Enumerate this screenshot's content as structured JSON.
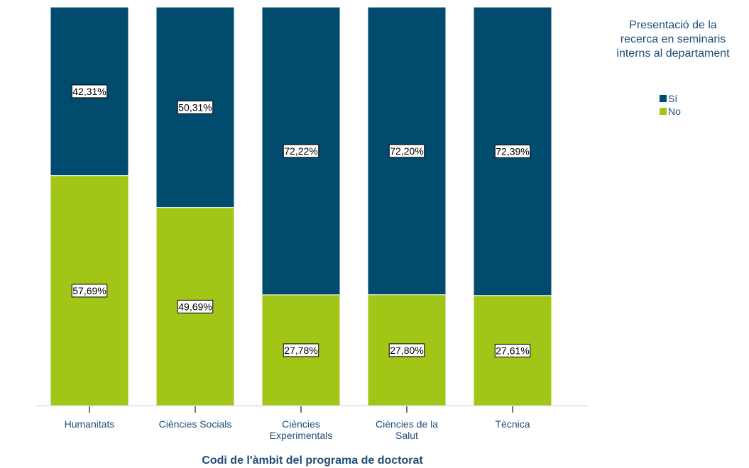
{
  "chart_data": {
    "type": "bar",
    "stacked": true,
    "percent": true,
    "categories": [
      [
        "Humanitats"
      ],
      [
        "Ciències Socials"
      ],
      [
        "Ciències",
        "Experimentals"
      ],
      [
        "Ciències de la",
        "Salut"
      ],
      [
        "Tècnica"
      ]
    ],
    "series": [
      {
        "name": "Sí",
        "color": "#004b6e",
        "values": [
          42.31,
          50.31,
          72.22,
          72.2,
          72.39
        ],
        "labels": [
          "42,31%",
          "50,31%",
          "72,22%",
          "72,20%",
          "72,39%"
        ]
      },
      {
        "name": "No",
        "color": "#a2c617",
        "values": [
          57.69,
          49.69,
          27.78,
          27.8,
          27.61
        ],
        "labels": [
          "57,69%",
          "49,69%",
          "27,78%",
          "27,80%",
          "27,61%"
        ]
      }
    ],
    "title": "",
    "xlabel": "Codi de l'àmbit del programa de doctorat",
    "ylabel": "",
    "ylim": [
      0,
      100
    ],
    "legend": {
      "title_lines": [
        "Presentació de la",
        "recerca en seminaris",
        "interns al departament"
      ],
      "placement": "top-right"
    }
  }
}
